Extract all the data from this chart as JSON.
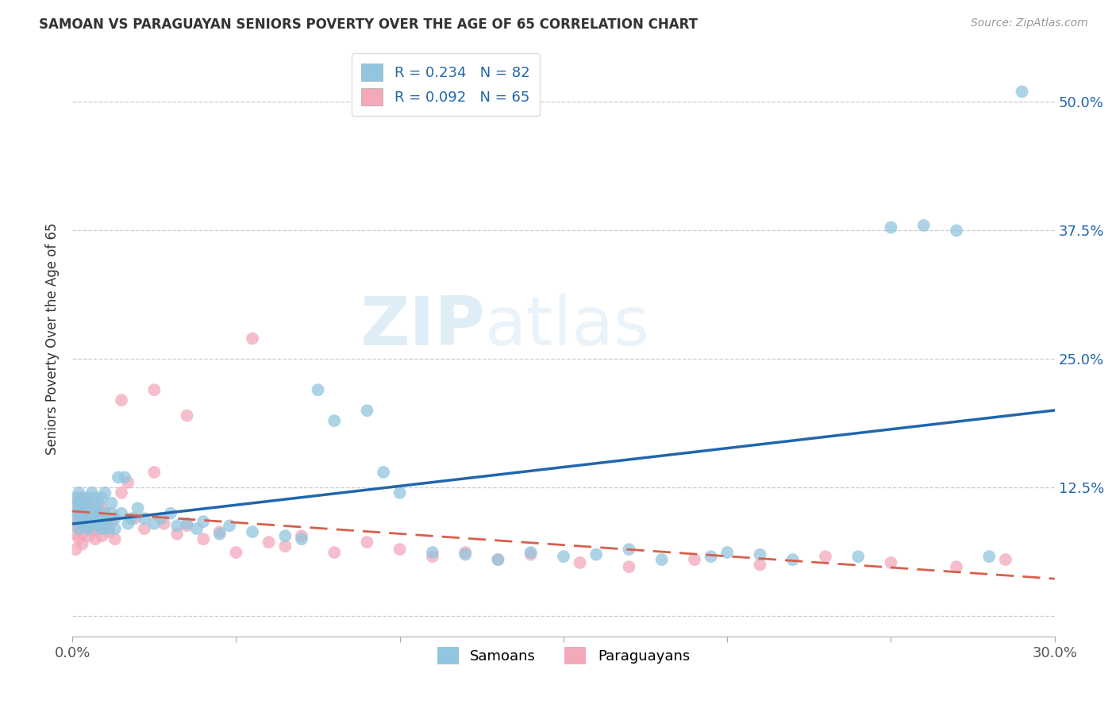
{
  "title": "SAMOAN VS PARAGUAYAN SENIORS POVERTY OVER THE AGE OF 65 CORRELATION CHART",
  "source": "Source: ZipAtlas.com",
  "ylabel": "Seniors Poverty Over the Age of 65",
  "xlim": [
    0.0,
    0.3
  ],
  "ylim": [
    -0.02,
    0.56
  ],
  "yticks": [
    0.0,
    0.125,
    0.25,
    0.375,
    0.5
  ],
  "ytick_labels_right": [
    "",
    "12.5%",
    "25.0%",
    "37.5%",
    "50.0%"
  ],
  "xticks": [
    0.0,
    0.05,
    0.1,
    0.15,
    0.2,
    0.25,
    0.3
  ],
  "xtick_labels": [
    "0.0%",
    "",
    "",
    "",
    "",
    "",
    "30.0%"
  ],
  "samoan_R": 0.234,
  "samoan_N": 82,
  "paraguayan_R": 0.092,
  "paraguayan_N": 65,
  "samoan_color": "#92C5DE",
  "paraguayan_color": "#F4A9BB",
  "samoan_line_color": "#2166AC",
  "paraguayan_line_color": "#D6604D",
  "watermark_zip": "ZIP",
  "watermark_atlas": "atlas",
  "background_color": "#ffffff",
  "grid_color": "#cccccc",
  "samoan_x": [
    0.001,
    0.001,
    0.001,
    0.002,
    0.002,
    0.002,
    0.002,
    0.003,
    0.003,
    0.003,
    0.003,
    0.004,
    0.004,
    0.004,
    0.004,
    0.005,
    0.005,
    0.005,
    0.005,
    0.006,
    0.006,
    0.006,
    0.007,
    0.007,
    0.007,
    0.008,
    0.008,
    0.008,
    0.009,
    0.009,
    0.009,
    0.01,
    0.01,
    0.01,
    0.011,
    0.011,
    0.012,
    0.012,
    0.013,
    0.013,
    0.014,
    0.015,
    0.016,
    0.017,
    0.018,
    0.02,
    0.022,
    0.025,
    0.027,
    0.03,
    0.032,
    0.035,
    0.038,
    0.04,
    0.045,
    0.048,
    0.055,
    0.065,
    0.07,
    0.075,
    0.08,
    0.09,
    0.095,
    0.1,
    0.11,
    0.12,
    0.13,
    0.14,
    0.15,
    0.16,
    0.17,
    0.18,
    0.195,
    0.2,
    0.21,
    0.22,
    0.24,
    0.25,
    0.26,
    0.27,
    0.28,
    0.29
  ],
  "samoan_y": [
    0.095,
    0.105,
    0.115,
    0.085,
    0.1,
    0.11,
    0.12,
    0.09,
    0.105,
    0.115,
    0.095,
    0.1,
    0.11,
    0.088,
    0.092,
    0.095,
    0.105,
    0.085,
    0.115,
    0.1,
    0.09,
    0.12,
    0.095,
    0.105,
    0.115,
    0.088,
    0.1,
    0.11,
    0.085,
    0.095,
    0.115,
    0.1,
    0.09,
    0.12,
    0.085,
    0.095,
    0.1,
    0.11,
    0.085,
    0.095,
    0.135,
    0.1,
    0.135,
    0.09,
    0.095,
    0.105,
    0.095,
    0.09,
    0.095,
    0.1,
    0.088,
    0.09,
    0.085,
    0.092,
    0.08,
    0.088,
    0.082,
    0.078,
    0.075,
    0.22,
    0.19,
    0.2,
    0.14,
    0.12,
    0.062,
    0.06,
    0.055,
    0.062,
    0.058,
    0.06,
    0.065,
    0.055,
    0.058,
    0.062,
    0.06,
    0.055,
    0.058,
    0.378,
    0.38,
    0.375,
    0.058,
    0.51
  ],
  "paraguayan_x": [
    0.001,
    0.001,
    0.001,
    0.001,
    0.001,
    0.002,
    0.002,
    0.002,
    0.002,
    0.003,
    0.003,
    0.003,
    0.003,
    0.004,
    0.004,
    0.004,
    0.005,
    0.005,
    0.005,
    0.006,
    0.006,
    0.007,
    0.007,
    0.008,
    0.008,
    0.009,
    0.009,
    0.01,
    0.01,
    0.011,
    0.012,
    0.013,
    0.015,
    0.017,
    0.019,
    0.022,
    0.025,
    0.028,
    0.032,
    0.035,
    0.04,
    0.045,
    0.05,
    0.06,
    0.065,
    0.07,
    0.08,
    0.09,
    0.1,
    0.11,
    0.12,
    0.13,
    0.14,
    0.155,
    0.17,
    0.19,
    0.21,
    0.23,
    0.25,
    0.27,
    0.285,
    0.055,
    0.025,
    0.035,
    0.015
  ],
  "paraguayan_y": [
    0.08,
    0.09,
    0.1,
    0.11,
    0.065,
    0.075,
    0.085,
    0.095,
    0.115,
    0.08,
    0.092,
    0.105,
    0.07,
    0.088,
    0.098,
    0.112,
    0.078,
    0.092,
    0.108,
    0.082,
    0.095,
    0.075,
    0.1,
    0.085,
    0.095,
    0.078,
    0.105,
    0.088,
    0.098,
    0.082,
    0.092,
    0.075,
    0.12,
    0.13,
    0.095,
    0.085,
    0.14,
    0.09,
    0.08,
    0.088,
    0.075,
    0.082,
    0.062,
    0.072,
    0.068,
    0.078,
    0.062,
    0.072,
    0.065,
    0.058,
    0.062,
    0.055,
    0.06,
    0.052,
    0.048,
    0.055,
    0.05,
    0.058,
    0.052,
    0.048,
    0.055,
    0.27,
    0.22,
    0.195,
    0.21
  ]
}
